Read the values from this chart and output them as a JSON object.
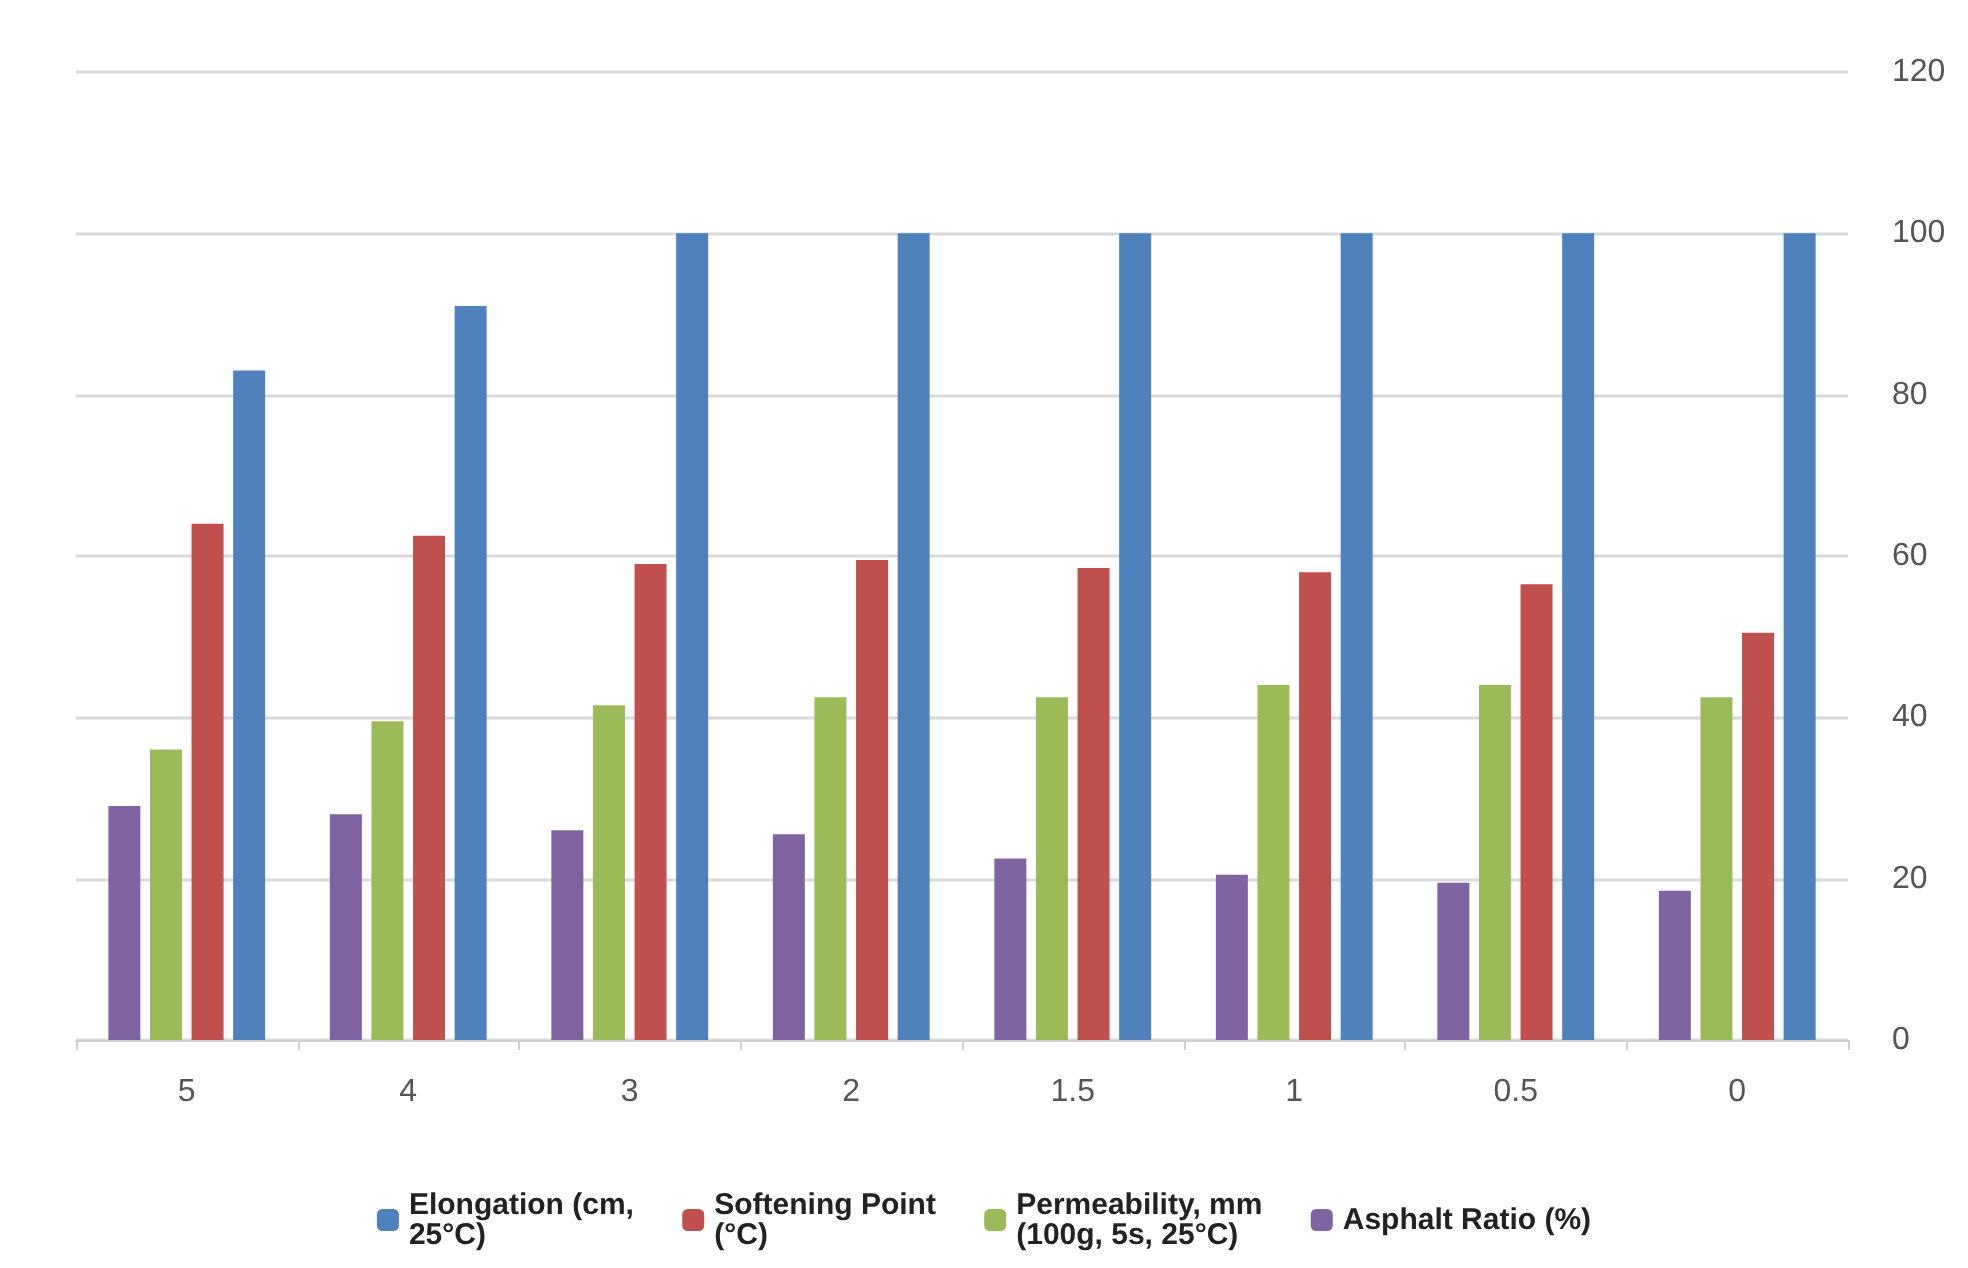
{
  "chart_data": {
    "type": "bar",
    "categories": [
      "5",
      "4",
      "3",
      "2",
      "1.5",
      "1",
      "0.5",
      "0"
    ],
    "series": [
      {
        "name": "Elongation (cm, 25°C)",
        "color": "#4f81bd",
        "values": [
          83,
          91,
          100,
          100,
          100,
          100,
          100,
          100
        ]
      },
      {
        "name": "Softening Point (°C)",
        "color": "#c0504d",
        "values": [
          64,
          62.5,
          59,
          59.5,
          58.5,
          58,
          56.5,
          50.5
        ]
      },
      {
        "name": "Permeability, mm (100g, 5s, 25°C)",
        "color": "#9bbb59",
        "values": [
          36,
          39.5,
          41.5,
          42.5,
          42.5,
          44,
          44,
          42.5
        ]
      },
      {
        "name": "Asphalt Ratio (%)",
        "color": "#8064a2",
        "values": [
          29,
          28,
          26,
          25.5,
          22.5,
          20.5,
          19.5,
          18.5
        ]
      }
    ],
    "ylim": [
      0,
      120
    ],
    "yticks": [
      0,
      20,
      40,
      60,
      80,
      100,
      120
    ],
    "grid": "y",
    "legend": "bottom"
  }
}
